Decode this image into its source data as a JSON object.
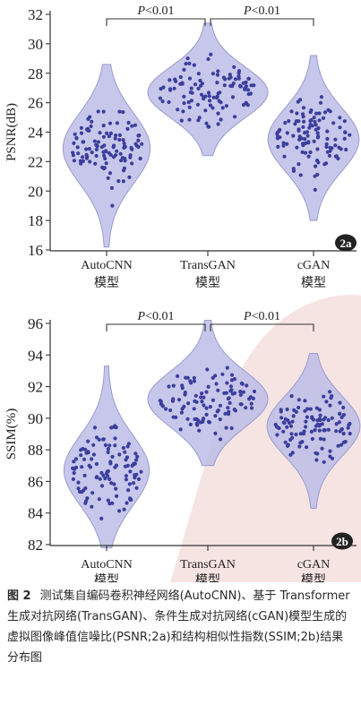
{
  "chart_data": [
    {
      "type": "violin",
      "panel_tag": "2a",
      "ylabel": "PSNR(dB)",
      "ylim": [
        16,
        32
      ],
      "yticks": [
        16,
        18,
        20,
        22,
        24,
        26,
        28,
        30,
        32
      ],
      "categories": [
        {
          "line1": "AutoCNN",
          "line2": "模型"
        },
        {
          "line1": "TransGAN",
          "line2": "模型"
        },
        {
          "line1": "cGAN",
          "line2": "模型"
        }
      ],
      "series": [
        {
          "category_index": 0,
          "min": 16.2,
          "max": 28.6,
          "median": 22.9,
          "spread": 0.45
        },
        {
          "category_index": 1,
          "min": 22.4,
          "max": 31.4,
          "median": 26.7,
          "spread": 0.62
        },
        {
          "category_index": 2,
          "min": 18.0,
          "max": 29.2,
          "median": 23.5,
          "spread": 0.47
        }
      ],
      "significance": [
        {
          "from": 0,
          "to": 1,
          "label_italic": "P",
          "label_rest": "<0.01"
        },
        {
          "from": 1,
          "to": 2,
          "label_italic": "P",
          "label_rest": "<0.01"
        }
      ]
    },
    {
      "type": "violin",
      "panel_tag": "2b",
      "ylabel": "SSIM(%)",
      "ylim": [
        82,
        96
      ],
      "yticks": [
        82,
        84,
        86,
        88,
        90,
        92,
        94,
        96
      ],
      "categories": [
        {
          "line1": "AutoCNN",
          "line2": "模型"
        },
        {
          "line1": "TransGAN",
          "line2": "模型"
        },
        {
          "line1": "cGAN",
          "line2": "模型"
        }
      ],
      "series": [
        {
          "category_index": 0,
          "min": 81.8,
          "max": 93.3,
          "median": 86.7,
          "spread": 0.44
        },
        {
          "category_index": 1,
          "min": 87.0,
          "max": 96.2,
          "median": 91.2,
          "spread": 0.62
        },
        {
          "category_index": 2,
          "min": 84.3,
          "max": 94.1,
          "median": 89.5,
          "spread": 0.48
        }
      ],
      "significance": [
        {
          "from": 0,
          "to": 1,
          "label_italic": "P",
          "label_rest": "<0.01"
        },
        {
          "from": 1,
          "to": 2,
          "label_italic": "P",
          "label_rest": "<0.01"
        }
      ]
    }
  ],
  "colors": {
    "violin_fill": "#bcbde6",
    "violin_stroke": "#9a9bd0",
    "dot": "#3b3e9c",
    "axis": "#333333",
    "watermark": "#f6e4e3",
    "tag_bg": "#222222"
  },
  "caption": {
    "label": "图 2",
    "text": "测试集自编码卷积神经网络(AutoCNN)、基于 Transformer 生成对抗网络(TransGAN)、条件生成对抗网络(cGAN)模型生成的虚拟图像峰值信噪比(PSNR;2a)和结构相似性指数(SSIM;2b)结果分布图"
  }
}
